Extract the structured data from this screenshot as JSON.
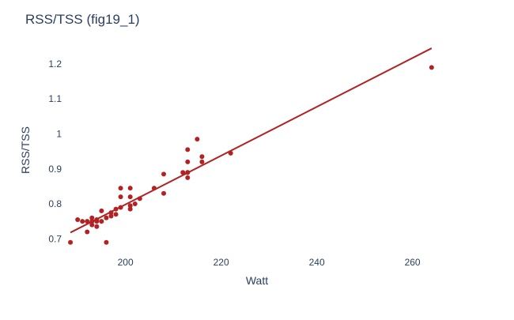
{
  "chart_data": {
    "type": "scatter",
    "title": "RSS/TSS (fig19_1)",
    "xlabel": "Watt",
    "ylabel": "RSS/TSS",
    "xlim": [
      187,
      268
    ],
    "ylim": [
      0.66,
      1.27
    ],
    "xticks": [
      200,
      220,
      240,
      260
    ],
    "yticks": [
      0.7,
      0.8,
      0.9,
      1,
      1.1,
      1.2
    ],
    "ytick_labels": [
      "0.7",
      "0.8",
      "0.9",
      "1",
      "1.1",
      "1.2"
    ],
    "xtick_labels": [
      "200",
      "220",
      "240",
      "260"
    ],
    "grid": false,
    "marker_color": "#b22222",
    "line_color": "#b22222",
    "series": [
      {
        "kind": "markers",
        "x": [
          188.5,
          190,
          191,
          192,
          192,
          193,
          193,
          193,
          194,
          194,
          194,
          195,
          195,
          196,
          196,
          197,
          197,
          198,
          198,
          199,
          199,
          199,
          201,
          201,
          201,
          201,
          202,
          203,
          206,
          208,
          208,
          212,
          213,
          213,
          213,
          213,
          213,
          215,
          216,
          216,
          222,
          264
        ],
        "y": [
          0.69,
          0.755,
          0.75,
          0.72,
          0.75,
          0.74,
          0.75,
          0.76,
          0.735,
          0.75,
          0.755,
          0.75,
          0.78,
          0.69,
          0.76,
          0.765,
          0.775,
          0.77,
          0.785,
          0.79,
          0.82,
          0.845,
          0.785,
          0.795,
          0.82,
          0.845,
          0.8,
          0.815,
          0.845,
          0.83,
          0.885,
          0.89,
          0.875,
          0.89,
          0.92,
          0.955,
          0.89,
          0.985,
          0.92,
          0.935,
          0.945,
          1.19
        ]
      },
      {
        "kind": "line",
        "x": [
          188.5,
          264
        ],
        "y": [
          0.718,
          1.245
        ]
      }
    ]
  }
}
